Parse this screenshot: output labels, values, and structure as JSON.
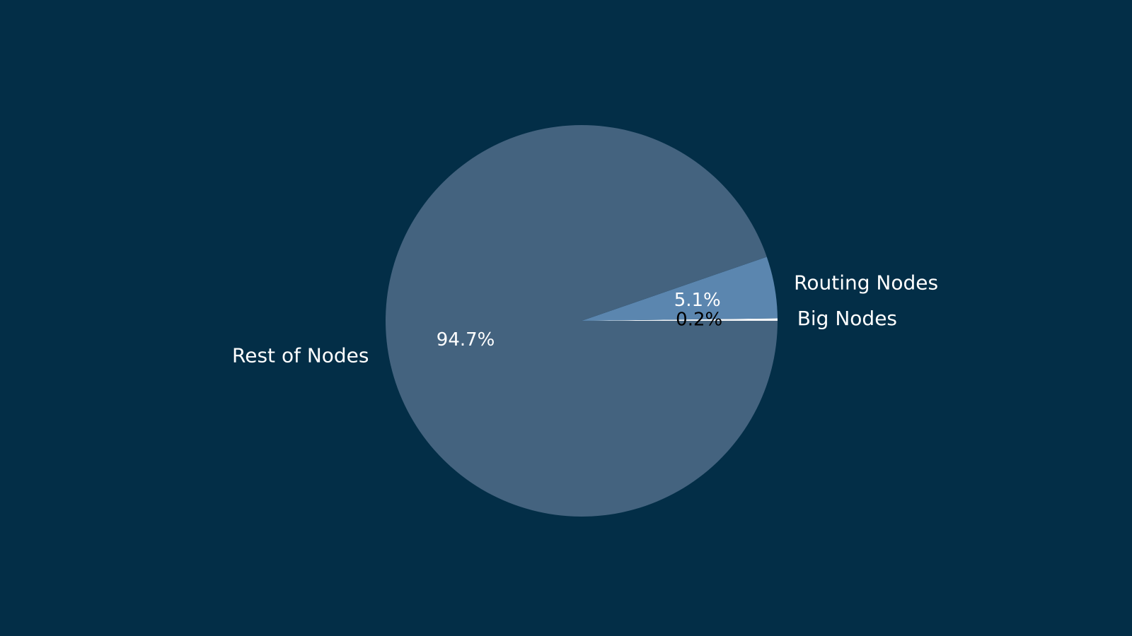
{
  "chart_data": {
    "type": "pie",
    "title": "",
    "background": "#032e47",
    "slices": [
      {
        "label": "Big Nodes",
        "value": 0.2,
        "pct_label": "0.2%",
        "color": "#f2f4f7",
        "pct_color": "#000000"
      },
      {
        "label": "Routing Nodes",
        "value": 5.1,
        "pct_label": "5.1%",
        "color": "#5b86af",
        "pct_color": "#ffffff"
      },
      {
        "label": "Rest of Nodes",
        "value": 94.7,
        "pct_label": "94.7%",
        "color": "#44637f",
        "pct_color": "#ffffff"
      }
    ],
    "start_angle_deg": 0,
    "direction": "counterclockwise",
    "legend": "none"
  }
}
